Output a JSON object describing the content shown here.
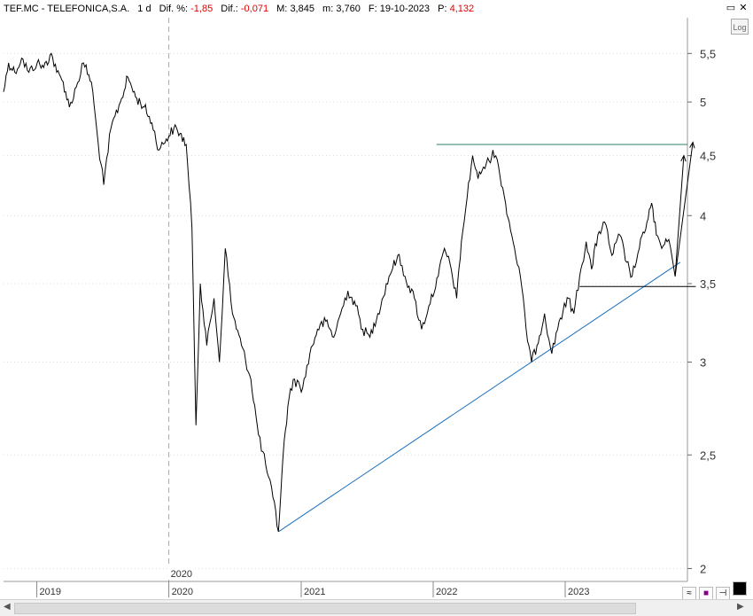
{
  "header": {
    "symbol": "TEF.MC - TELEFONICA,S.A.",
    "timeframe": "1 d",
    "dif_pct_label": "Dif. %:",
    "dif_pct_value": "-1,85",
    "dif_label": "Dif.:",
    "dif_value": "-0,071",
    "max_label": "M:",
    "max_value": "3,845",
    "min_label": "m:",
    "min_value": "3,760",
    "date_label": "F:",
    "date_value": "19-10-2023",
    "price_label": "P:",
    "price_value": "4,132"
  },
  "log_button": "Log",
  "colors": {
    "price": "#000000",
    "trendline": "#1a6fc0",
    "resistance": "#2e7d6a",
    "grid": "#dddddd",
    "negative": "#e00000"
  },
  "chart_data": {
    "type": "line",
    "scale": "log",
    "ylim": [
      1.95,
      5.9
    ],
    "y_ticks": [
      {
        "value": 2,
        "label": "2"
      },
      {
        "value": 2.5,
        "label": "2,5"
      },
      {
        "value": 3,
        "label": "3"
      },
      {
        "value": 3.5,
        "label": "3,5"
      },
      {
        "value": 4,
        "label": "4"
      },
      {
        "value": 4.5,
        "label": "4,5"
      },
      {
        "value": 5,
        "label": "5"
      },
      {
        "value": 5.5,
        "label": "5,5"
      }
    ],
    "x_ticks": [
      {
        "date": "2019-01-01",
        "label": "2019"
      },
      {
        "date": "2020-01-01",
        "label": "2020"
      },
      {
        "date": "2021-01-01",
        "label": "2021"
      },
      {
        "date": "2022-01-01",
        "label": "2022"
      },
      {
        "date": "2023-01-01",
        "label": "2023"
      }
    ],
    "xlim": [
      "2018-10-01",
      "2023-12-05"
    ],
    "cursor": {
      "date": "2020-01-01",
      "label": "2020"
    },
    "series": [
      {
        "points": [
          [
            "2018-10-01",
            5.1
          ],
          [
            "2018-10-15",
            5.4
          ],
          [
            "2018-11-01",
            5.3
          ],
          [
            "2018-11-20",
            5.45
          ],
          [
            "2018-12-10",
            5.3
          ],
          [
            "2019-01-02",
            5.4
          ],
          [
            "2019-01-20",
            5.35
          ],
          [
            "2019-02-10",
            5.5
          ],
          [
            "2019-02-25",
            5.3
          ],
          [
            "2019-03-15",
            5.2
          ],
          [
            "2019-04-01",
            4.95
          ],
          [
            "2019-04-20",
            5.15
          ],
          [
            "2019-05-10",
            5.4
          ],
          [
            "2019-06-01",
            5.2
          ],
          [
            "2019-06-20",
            4.6
          ],
          [
            "2019-07-05",
            4.25
          ],
          [
            "2019-07-25",
            4.75
          ],
          [
            "2019-08-20",
            5.0
          ],
          [
            "2019-09-10",
            5.25
          ],
          [
            "2019-10-01",
            5.05
          ],
          [
            "2019-10-25",
            4.95
          ],
          [
            "2019-11-15",
            4.8
          ],
          [
            "2019-12-05",
            4.55
          ],
          [
            "2019-12-25",
            4.65
          ],
          [
            "2020-01-15",
            4.75
          ],
          [
            "2020-02-01",
            4.7
          ],
          [
            "2020-02-18",
            4.6
          ],
          [
            "2020-03-05",
            3.9
          ],
          [
            "2020-03-16",
            2.65
          ],
          [
            "2020-03-28",
            3.5
          ],
          [
            "2020-04-15",
            3.1
          ],
          [
            "2020-05-05",
            3.4
          ],
          [
            "2020-05-20",
            3.0
          ],
          [
            "2020-06-05",
            3.75
          ],
          [
            "2020-06-25",
            3.3
          ],
          [
            "2020-07-20",
            3.1
          ],
          [
            "2020-08-15",
            2.9
          ],
          [
            "2020-09-05",
            2.6
          ],
          [
            "2020-09-25",
            2.45
          ],
          [
            "2020-10-15",
            2.3
          ],
          [
            "2020-10-30",
            2.15
          ],
          [
            "2020-11-12",
            2.5
          ],
          [
            "2020-11-25",
            2.75
          ],
          [
            "2020-12-10",
            2.9
          ],
          [
            "2021-01-05",
            2.85
          ],
          [
            "2021-01-25",
            3.05
          ],
          [
            "2021-02-15",
            3.2
          ],
          [
            "2021-03-10",
            3.25
          ],
          [
            "2021-04-01",
            3.15
          ],
          [
            "2021-04-20",
            3.3
          ],
          [
            "2021-05-10",
            3.45
          ],
          [
            "2021-06-01",
            3.35
          ],
          [
            "2021-06-20",
            3.2
          ],
          [
            "2021-07-10",
            3.15
          ],
          [
            "2021-08-01",
            3.3
          ],
          [
            "2021-09-01",
            3.55
          ],
          [
            "2021-09-25",
            3.7
          ],
          [
            "2021-10-15",
            3.55
          ],
          [
            "2021-11-10",
            3.4
          ],
          [
            "2021-11-30",
            3.2
          ],
          [
            "2021-12-20",
            3.35
          ],
          [
            "2022-01-15",
            3.55
          ],
          [
            "2022-02-01",
            3.75
          ],
          [
            "2022-02-20",
            3.6
          ],
          [
            "2022-03-07",
            3.4
          ],
          [
            "2022-03-20",
            3.8
          ],
          [
            "2022-04-05",
            4.15
          ],
          [
            "2022-04-20",
            4.5
          ],
          [
            "2022-05-05",
            4.3
          ],
          [
            "2022-05-20",
            4.4
          ],
          [
            "2022-06-05",
            4.45
          ],
          [
            "2022-06-15",
            4.55
          ],
          [
            "2022-07-01",
            4.4
          ],
          [
            "2022-07-20",
            4.1
          ],
          [
            "2022-08-10",
            3.8
          ],
          [
            "2022-08-30",
            3.55
          ],
          [
            "2022-09-15",
            3.2
          ],
          [
            "2022-09-30",
            3.0
          ],
          [
            "2022-10-15",
            3.1
          ],
          [
            "2022-11-05",
            3.3
          ],
          [
            "2022-11-25",
            3.05
          ],
          [
            "2022-12-15",
            3.25
          ],
          [
            "2023-01-10",
            3.4
          ],
          [
            "2023-01-25",
            3.3
          ],
          [
            "2023-02-10",
            3.55
          ],
          [
            "2023-02-28",
            3.8
          ],
          [
            "2023-03-15",
            3.6
          ],
          [
            "2023-04-01",
            3.85
          ],
          [
            "2023-04-20",
            3.95
          ],
          [
            "2023-05-10",
            3.7
          ],
          [
            "2023-06-01",
            3.85
          ],
          [
            "2023-06-20",
            3.65
          ],
          [
            "2023-07-05",
            3.55
          ],
          [
            "2023-07-25",
            3.75
          ],
          [
            "2023-08-15",
            3.95
          ],
          [
            "2023-08-28",
            4.1
          ],
          [
            "2023-09-10",
            3.85
          ],
          [
            "2023-09-25",
            3.75
          ],
          [
            "2023-10-10",
            3.8
          ],
          [
            "2023-10-19",
            3.76
          ]
        ]
      }
    ],
    "annotations": {
      "trendline": [
        [
          "2020-10-30",
          2.15
        ],
        [
          "2023-11-15",
          3.65
        ]
      ],
      "resistance": [
        [
          "2022-01-10",
          4.6
        ],
        [
          "2023-12-05",
          4.6
        ]
      ],
      "support": [
        [
          "2023-02-10",
          3.48
        ],
        [
          "2023-12-28",
          3.48
        ]
      ],
      "projection_1": [
        [
          "2023-10-19",
          3.76
        ],
        [
          "2023-11-01",
          3.55
        ],
        [
          "2023-11-25",
          4.5
        ]
      ],
      "projection_2": [
        [
          "2023-11-01",
          3.55
        ],
        [
          "2023-12-20",
          4.62
        ]
      ]
    }
  }
}
